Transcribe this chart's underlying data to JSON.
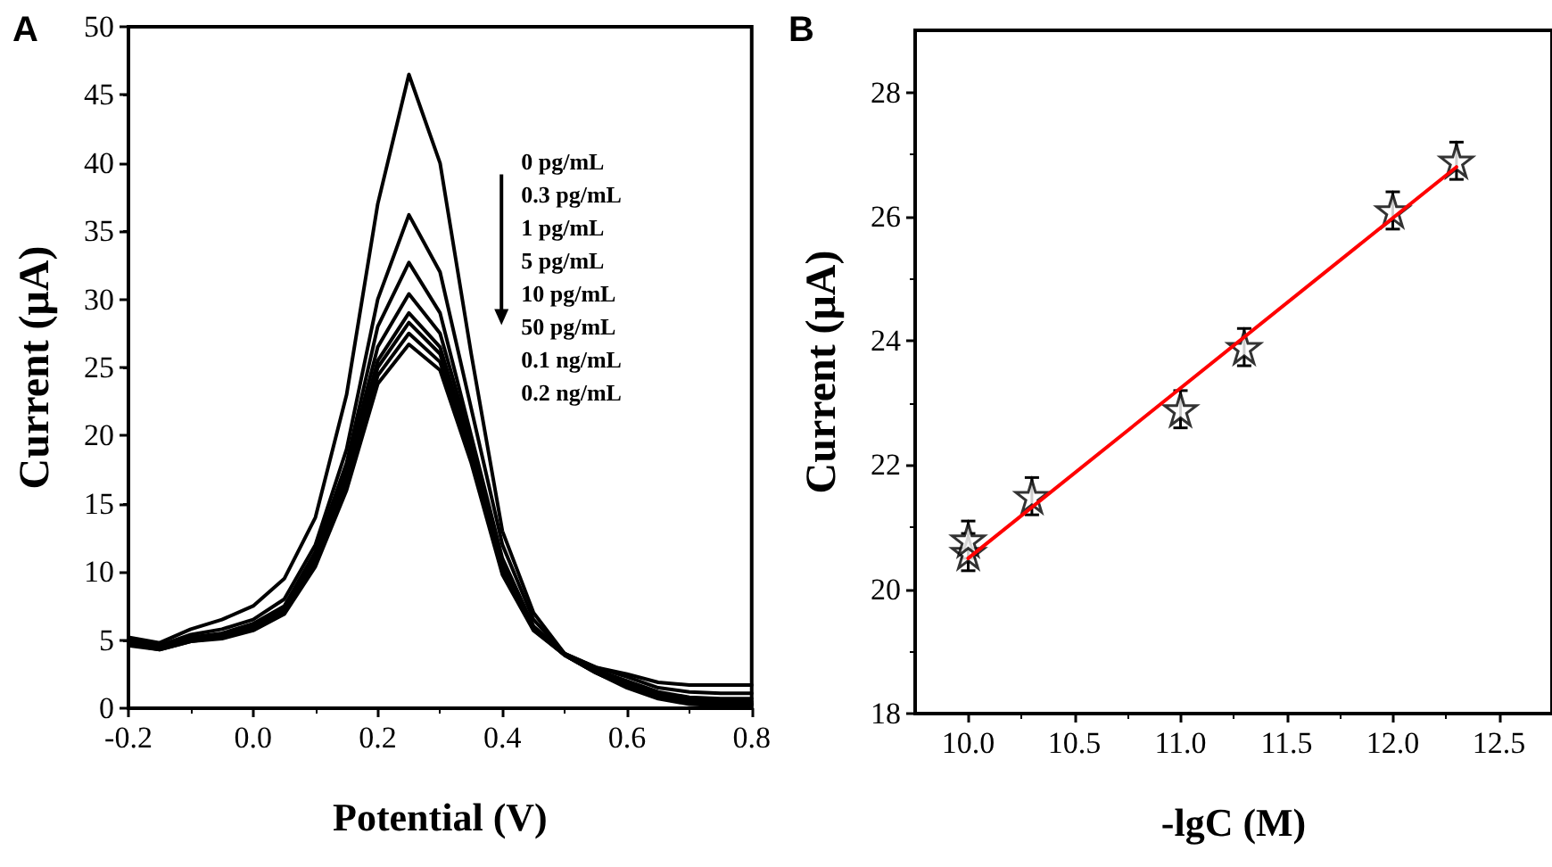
{
  "chart_data": [
    {
      "type": "line",
      "title": "A",
      "xlabel": "Potential (V)",
      "ylabel": "Current (μA)",
      "marker": "none",
      "x": [
        -0.2,
        -0.15,
        -0.1,
        -0.05,
        0,
        0.05,
        0.1,
        0.15,
        0.2,
        0.25,
        0.3,
        0.35,
        0.4,
        0.45,
        0.5,
        0.55,
        0.6,
        0.65,
        0.7,
        0.75,
        0.8
      ],
      "series": [
        {
          "color": "#000000",
          "values": [
            5.2,
            4.8,
            5.8,
            6.5,
            7.5,
            9.5,
            14,
            23,
            37,
            46.5,
            40,
            26,
            13,
            7,
            4,
            3,
            2.5,
            1.9,
            1.7,
            1.7,
            1.7
          ]
        },
        {
          "color": "#000000",
          "values": [
            5,
            4.6,
            5.4,
            5.8,
            6.5,
            8,
            12,
            19,
            30,
            36.2,
            32,
            22,
            12,
            6.5,
            4,
            3,
            2.3,
            1.5,
            1.2,
            1.1,
            1.1
          ]
        },
        {
          "color": "#000000",
          "values": [
            4.9,
            4.5,
            5.2,
            5.5,
            6.2,
            7.5,
            11.5,
            18,
            28,
            32.7,
            29,
            20,
            11,
            6,
            4,
            2.8,
            2,
            1.2,
            0.8,
            0.7,
            0.7
          ]
        },
        {
          "color": "#000000",
          "values": [
            4.8,
            4.5,
            5.1,
            5.4,
            6,
            7.3,
            11.2,
            17.5,
            26.5,
            30.4,
            27.5,
            19.5,
            10.5,
            6,
            3.9,
            2.7,
            1.8,
            1,
            0.6,
            0.5,
            0.5
          ]
        },
        {
          "color": "#000000",
          "values": [
            4.8,
            4.4,
            5,
            5.3,
            5.9,
            7.2,
            11,
            17,
            25.5,
            29,
            26.5,
            19,
            10.3,
            5.9,
            3.9,
            2.7,
            1.7,
            0.9,
            0.5,
            0.4,
            0.4
          ]
        },
        {
          "color": "#000000",
          "values": [
            4.7,
            4.4,
            5,
            5.2,
            5.8,
            7.1,
            10.8,
            16.7,
            25,
            28.3,
            26,
            18.7,
            10.2,
            5.8,
            3.9,
            2.6,
            1.6,
            0.8,
            0.4,
            0.3,
            0.3
          ]
        },
        {
          "color": "#000000",
          "values": [
            4.7,
            4.3,
            4.9,
            5.2,
            5.8,
            7,
            10.6,
            16.4,
            24.4,
            27.5,
            25.4,
            18.4,
            10,
            5.8,
            3.9,
            2.6,
            1.6,
            0.8,
            0.4,
            0.3,
            0.3
          ]
        },
        {
          "color": "#000000",
          "values": [
            4.6,
            4.3,
            4.9,
            5.1,
            5.7,
            6.9,
            10.4,
            16,
            23.8,
            26.7,
            24.8,
            18,
            9.8,
            5.7,
            3.9,
            2.6,
            1.5,
            0.7,
            0.3,
            0.2,
            0.2
          ]
        }
      ],
      "annotations": [
        "0 pg/mL",
        "0.3 pg/mL",
        "1 pg/mL",
        "5 pg/mL",
        "10 pg/mL",
        "50 pg/mL",
        "0.1 ng/mL",
        "0.2 ng/mL"
      ],
      "xlim": [
        -0.2,
        0.8
      ],
      "xticks": [
        {
          "value": -0.2,
          "label": "-0.2"
        },
        {
          "value": 0,
          "label": "0.0"
        },
        {
          "value": 0.2,
          "label": "0.2"
        },
        {
          "value": 0.4,
          "label": "0.4"
        },
        {
          "value": 0.6,
          "label": "0.6"
        },
        {
          "value": 0.8,
          "label": "0.8"
        }
      ],
      "ylim": [
        0,
        50
      ],
      "yticks": [
        0,
        5,
        10,
        15,
        20,
        25,
        30,
        35,
        40,
        45,
        50
      ]
    },
    {
      "type": "scatter",
      "title": "B",
      "xlabel": "-lgC (M)",
      "ylabel": "Current (μA)",
      "marker": "star",
      "series": [
        {
          "color": "#000000",
          "x": [
            10.0,
            10.0,
            10.3,
            11.0,
            11.3,
            12.0,
            12.3
          ],
          "values": [
            20.6,
            20.8,
            21.5,
            22.9,
            23.9,
            26.1,
            26.9
          ],
          "errors": [
            0.3,
            0.3,
            0.3,
            0.3,
            0.3,
            0.3,
            0.3
          ]
        },
        {
          "type": "line",
          "color": "#ff0000",
          "marker": "none",
          "x": [
            10.0,
            12.3
          ],
          "values": [
            20.5,
            26.8
          ]
        }
      ],
      "xlim": [
        9.75,
        12.75
      ],
      "xticks": [
        {
          "value": 10,
          "label": "10.0"
        },
        {
          "value": 10.5,
          "label": "10.5"
        },
        {
          "value": 11,
          "label": "11.0"
        },
        {
          "value": 11.5,
          "label": "11.5"
        },
        {
          "value": 12,
          "label": "12.0"
        },
        {
          "value": 12.5,
          "label": "12.5"
        }
      ],
      "ylim": [
        18,
        29
      ],
      "yticks": [
        18,
        20,
        22,
        24,
        26,
        28
      ]
    }
  ]
}
